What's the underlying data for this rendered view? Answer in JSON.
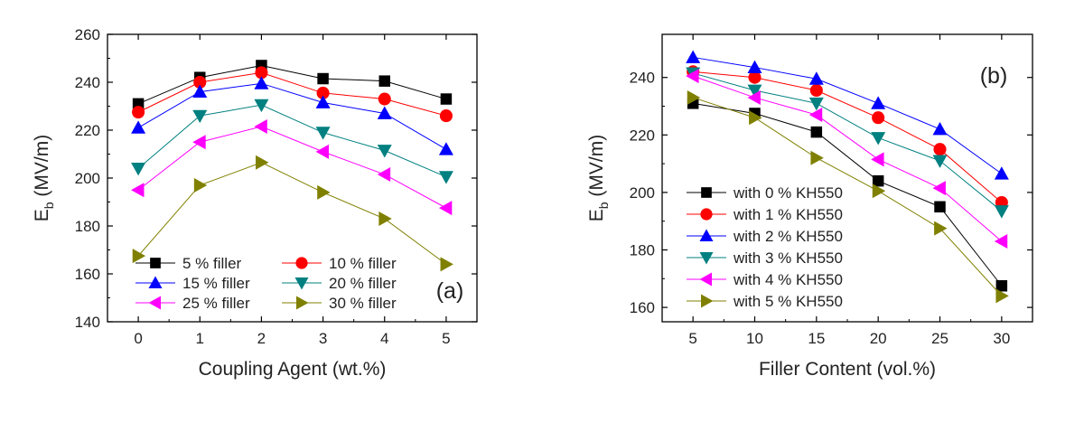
{
  "chart_data": [
    {
      "type": "line",
      "panel_tag": "(a)",
      "xlabel": "Coupling Agent (wt.%)",
      "ylabel": "E",
      "ylabel_sub": "b",
      "ylabel_unit": "(MV/m)",
      "x": [
        0,
        1,
        2,
        3,
        4,
        5
      ],
      "x_ticks": [
        "0",
        "1",
        "2",
        "3",
        "4",
        "5"
      ],
      "xlim": [
        -0.5,
        5.5
      ],
      "ylim": [
        140,
        260
      ],
      "y_ticks": [
        140,
        160,
        180,
        200,
        220,
        240,
        260
      ],
      "legend_position": "bottom-left",
      "series": [
        {
          "name": "5 % filler",
          "marker": "square",
          "color": "#000000",
          "values": [
            231,
            242,
            247,
            241.5,
            240.5,
            233
          ]
        },
        {
          "name": "10 % filler",
          "marker": "circle",
          "color": "#ff0000",
          "values": [
            227.5,
            240,
            244,
            235.5,
            233,
            226
          ]
        },
        {
          "name": "15 % filler",
          "marker": "triangle-up",
          "color": "#0000ff",
          "values": [
            221,
            236,
            239.5,
            231.5,
            227,
            212
          ]
        },
        {
          "name": "20 % filler",
          "marker": "triangle-down",
          "color": "#008080",
          "values": [
            204,
            226,
            230.5,
            219,
            211.5,
            200.5
          ]
        },
        {
          "name": "25 % filler",
          "marker": "triangle-left",
          "color": "#ff00ff",
          "values": [
            195,
            215,
            221.5,
            211,
            201.5,
            187.5
          ]
        },
        {
          "name": "30 % filler",
          "marker": "triangle-right",
          "color": "#808000",
          "values": [
            167.5,
            197,
            206.5,
            194,
            183,
            164
          ]
        }
      ]
    },
    {
      "type": "line",
      "panel_tag": "(b)",
      "xlabel": "Filler Content (vol.%)",
      "ylabel": "E",
      "ylabel_sub": "b",
      "ylabel_unit": "(MV/m)",
      "x": [
        5,
        10,
        15,
        20,
        25,
        30
      ],
      "x_ticks": [
        "5",
        "10",
        "15",
        "20",
        "25",
        "30"
      ],
      "xlim": [
        2.5,
        32.5
      ],
      "ylim": [
        155,
        255
      ],
      "y_ticks": [
        160,
        180,
        200,
        220,
        240
      ],
      "legend_position": "bottom-left",
      "series": [
        {
          "name": "with 0 % KH550",
          "marker": "square",
          "color": "#000000",
          "values": [
            231,
            227.5,
            221,
            204,
            195,
            167.5
          ]
        },
        {
          "name": "with 1 % KH550",
          "marker": "circle",
          "color": "#ff0000",
          "values": [
            242,
            240,
            235.5,
            226,
            215,
            196.5
          ]
        },
        {
          "name": "with 2 % KH550",
          "marker": "triangle-up",
          "color": "#0000ff",
          "values": [
            247,
            243.5,
            239.5,
            231,
            222,
            206.5
          ]
        },
        {
          "name": "with 3 % KH550",
          "marker": "triangle-down",
          "color": "#008080",
          "values": [
            241.5,
            235.5,
            231,
            219,
            211,
            193.5
          ]
        },
        {
          "name": "with 4 % KH550",
          "marker": "triangle-left",
          "color": "#ff00ff",
          "values": [
            240.5,
            233,
            227,
            211.5,
            201.5,
            183
          ]
        },
        {
          "name": "with 5 % KH550",
          "marker": "triangle-right",
          "color": "#808000",
          "values": [
            233,
            226,
            212,
            200.5,
            187.5,
            164
          ]
        }
      ]
    }
  ]
}
